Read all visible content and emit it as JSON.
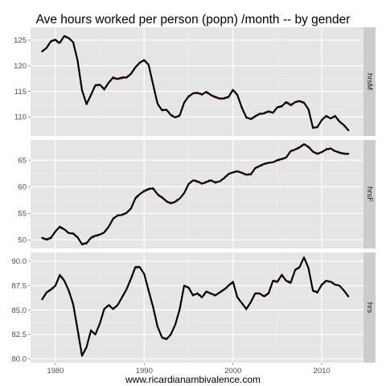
{
  "chart_data": {
    "type": "line",
    "title": "Ave hours worked per person (popn) /month -- by gender",
    "xlabel": "www.ricardianambivalence.com",
    "ylabel": "",
    "xlim": [
      1977.2,
      2014.7
    ],
    "x_ticks": [
      1980,
      1990,
      2000,
      2010
    ],
    "x_tick_labels": [
      "1980",
      "1990",
      "2000",
      "2010"
    ],
    "grid": true,
    "legend": "none",
    "colors": {
      "raw_series": "#e41a1c",
      "smoothed_series": "#000000",
      "panel_background": "#e5e5e5",
      "grid_major": "#ffffff",
      "strip_background": "#cccccc"
    },
    "panels": [
      {
        "strip_label": "hrsM",
        "ylim": [
          106.3,
          127.5
        ],
        "y_ticks": [
          110,
          115,
          120,
          125
        ],
        "y_tick_labels": [
          "110",
          "115",
          "120",
          "125"
        ],
        "series": [
          {
            "name": "hrsM",
            "x": [
              1978.5,
              1979.0,
              1979.5,
              1980.0,
              1980.3,
              1980.5,
              1981.0,
              1981.5,
              1982.0,
              1982.5,
              1983.0,
              1983.5,
              1984.0,
              1984.5,
              1985.0,
              1985.5,
              1986.0,
              1986.5,
              1987.0,
              1987.5,
              1988.0,
              1988.5,
              1989.0,
              1989.5,
              1990.0,
              1990.5,
              1991.0,
              1991.5,
              1992.0,
              1992.5,
              1993.0,
              1993.5,
              1994.0,
              1994.5,
              1995.0,
              1995.5,
              1996.0,
              1996.5,
              1997.0,
              1997.5,
              1998.0,
              1998.5,
              1999.0,
              1999.5,
              2000.0,
              2000.5,
              2001.0,
              2001.5,
              2002.0,
              2002.5,
              2003.0,
              2003.5,
              2004.0,
              2004.5,
              2005.0,
              2005.5,
              2006.0,
              2006.5,
              2007.0,
              2007.5,
              2008.0,
              2008.5,
              2009.0,
              2009.5,
              2010.0,
              2010.5,
              2011.0,
              2011.5,
              2012.0,
              2012.5,
              2013.0
            ],
            "values": [
              122.8,
              123.5,
              124.8,
              125.1,
              124.6,
              124.5,
              125.8,
              125.4,
              124.6,
              121.0,
              115.2,
              112.5,
              114.3,
              116.2,
              116.3,
              115.4,
              116.7,
              117.7,
              117.4,
              117.7,
              117.7,
              118.4,
              119.7,
              120.6,
              121.1,
              120.2,
              116.3,
              112.6,
              111.3,
              111.4,
              110.4,
              109.9,
              110.3,
              112.8,
              114.0,
              114.6,
              114.7,
              114.4,
              114.9,
              114.3,
              113.9,
              113.6,
              113.6,
              113.9,
              115.3,
              114.3,
              111.8,
              109.9,
              109.6,
              110.1,
              110.6,
              110.7,
              111.1,
              110.8,
              111.9,
              112.1,
              112.9,
              112.3,
              112.9,
              113.1,
              112.8,
              111.5,
              107.9,
              108.0,
              109.4,
              110.2,
              109.7,
              110.2,
              109.1,
              108.4,
              107.4
            ]
          }
        ]
      },
      {
        "strip_label": "hrsF",
        "ylim": [
          48.4,
          68.8
        ],
        "y_ticks": [
          50,
          55,
          60,
          65
        ],
        "y_tick_labels": [
          "50",
          "55",
          "60",
          "65"
        ],
        "series": [
          {
            "name": "hrsF",
            "x": [
              1978.5,
              1979.0,
              1979.5,
              1980.0,
              1980.5,
              1981.0,
              1981.5,
              1982.0,
              1982.5,
              1983.0,
              1983.5,
              1984.0,
              1984.5,
              1985.0,
              1985.5,
              1986.0,
              1986.5,
              1987.0,
              1987.5,
              1988.0,
              1988.5,
              1989.0,
              1989.5,
              1990.0,
              1990.5,
              1991.0,
              1991.5,
              1992.0,
              1992.5,
              1993.0,
              1993.5,
              1994.0,
              1994.5,
              1995.0,
              1995.5,
              1996.0,
              1996.5,
              1997.0,
              1997.5,
              1998.0,
              1998.5,
              1999.0,
              1999.5,
              2000.0,
              2000.5,
              2001.0,
              2001.5,
              2002.0,
              2002.5,
              2003.0,
              2003.5,
              2004.0,
              2004.5,
              2005.0,
              2005.5,
              2006.0,
              2006.5,
              2007.0,
              2007.5,
              2008.0,
              2008.5,
              2009.0,
              2009.5,
              2010.0,
              2010.5,
              2011.0,
              2011.5,
              2012.0,
              2012.5,
              2013.0
            ],
            "values": [
              50.4,
              50.1,
              50.4,
              51.6,
              52.5,
              52.0,
              51.3,
              51.2,
              50.5,
              49.2,
              49.4,
              50.4,
              50.8,
              51.0,
              51.4,
              52.5,
              54.0,
              54.6,
              54.7,
              55.1,
              55.9,
              57.8,
              58.6,
              59.2,
              59.6,
              59.7,
              58.6,
              58.0,
              57.3,
              56.9,
              57.2,
              57.8,
              58.8,
              60.5,
              61.2,
              61.0,
              60.6,
              60.9,
              61.2,
              60.8,
              61.0,
              61.6,
              62.4,
              62.7,
              62.9,
              62.6,
              62.3,
              62.3,
              63.5,
              63.9,
              64.3,
              64.5,
              64.6,
              65.0,
              65.2,
              65.5,
              66.7,
              67.0,
              67.4,
              68.0,
              67.5,
              66.6,
              66.2,
              66.5,
              67.0,
              67.2,
              66.7,
              66.4,
              66.2,
              66.2
            ]
          }
        ]
      },
      {
        "strip_label": "hrs",
        "ylim": [
          79.6,
          90.9
        ],
        "y_ticks": [
          80.0,
          82.5,
          85.0,
          87.5,
          90.0
        ],
        "y_tick_labels": [
          "80.0",
          "82.5",
          "85.0",
          "87.5",
          "90.0"
        ],
        "series": [
          {
            "name": "hrs",
            "x": [
              1978.5,
              1979.0,
              1979.5,
              1980.0,
              1980.5,
              1981.0,
              1981.5,
              1982.0,
              1982.5,
              1983.0,
              1983.5,
              1984.0,
              1984.5,
              1985.0,
              1985.5,
              1986.0,
              1986.5,
              1987.0,
              1987.5,
              1988.0,
              1988.5,
              1989.0,
              1989.5,
              1990.0,
              1990.5,
              1991.0,
              1991.5,
              1992.0,
              1992.5,
              1993.0,
              1993.5,
              1994.0,
              1994.5,
              1995.0,
              1995.5,
              1996.0,
              1996.5,
              1997.0,
              1997.5,
              1998.0,
              1998.5,
              1999.0,
              1999.5,
              2000.0,
              2000.5,
              2001.0,
              2001.5,
              2002.0,
              2002.5,
              2003.0,
              2003.5,
              2004.0,
              2004.5,
              2005.0,
              2005.5,
              2006.0,
              2006.5,
              2007.0,
              2007.5,
              2008.0,
              2008.5,
              2009.0,
              2009.5,
              2010.0,
              2010.5,
              2011.0,
              2011.5,
              2012.0,
              2012.5,
              2013.0
            ],
            "values": [
              86.1,
              86.8,
              87.1,
              87.5,
              88.6,
              88.0,
              87.0,
              85.6,
              83.0,
              80.3,
              81.2,
              82.9,
              82.5,
              83.6,
              85.1,
              85.5,
              85.1,
              85.5,
              86.3,
              87.1,
              88.2,
              89.4,
              89.4,
              88.7,
              87.0,
              85.3,
              83.3,
              82.2,
              82.0,
              82.5,
              83.5,
              85.1,
              87.5,
              87.3,
              86.5,
              86.7,
              86.3,
              86.9,
              86.7,
              86.5,
              86.8,
              87.1,
              87.5,
              87.9,
              86.3,
              85.7,
              85.1,
              85.8,
              86.7,
              86.7,
              86.4,
              86.7,
              88.0,
              87.9,
              88.6,
              88.0,
              87.8,
              89.1,
              89.4,
              90.4,
              89.3,
              87.0,
              86.8,
              87.6,
              88.0,
              87.9,
              87.6,
              87.5,
              87.0,
              86.4
            ]
          }
        ]
      }
    ]
  }
}
